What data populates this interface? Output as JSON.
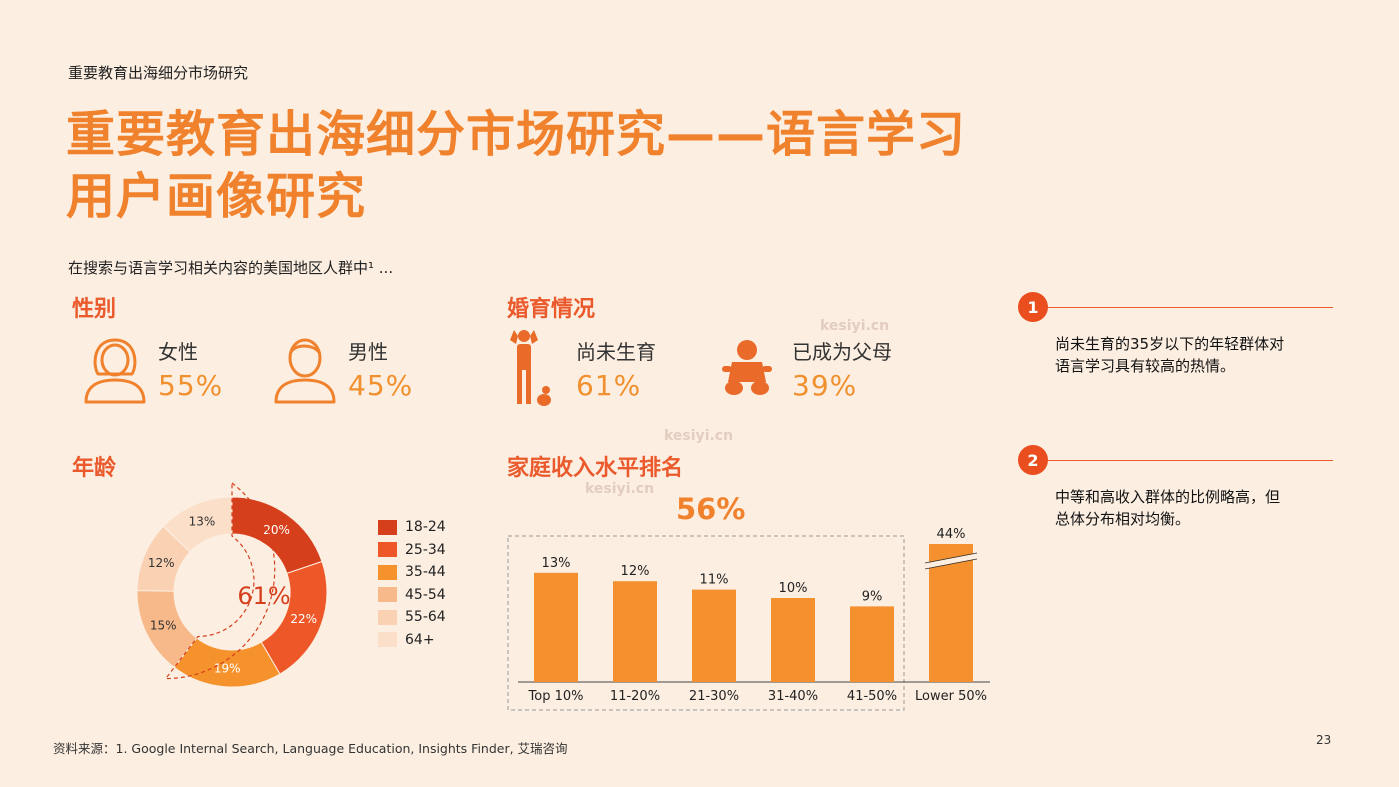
{
  "header": {
    "kicker": "重要教育出海细分市场研究",
    "title_line1": "重要教育出海细分市场研究——语言学习",
    "title_line2": "用户画像研究",
    "intro": "在搜索与语言学习相关内容的美国地区人群中¹ ..."
  },
  "gender": {
    "heading": "性别",
    "female_label": "女性",
    "female_pct": "55%",
    "male_label": "男性",
    "male_pct": "45%"
  },
  "parental": {
    "heading": "婚育情况",
    "nonparent_label": "尚未生育",
    "nonparent_pct": "61%",
    "parent_label": "已成为父母",
    "parent_pct": "39%"
  },
  "age_heading": "年龄",
  "income_heading": "家庭收入水平排名",
  "insights": [
    {
      "num": "1",
      "text_line1": "尚未生育的35岁以下的年轻群体对",
      "text_line2": "语言学习具有较高的热情。"
    },
    {
      "num": "2",
      "text_line1": "中等和高收入群体的比例略高，但",
      "text_line2": "总体分布相对均衡。"
    }
  ],
  "footer": {
    "source": "资料来源：1. Google Internal Search, Language Education, Insights Finder, 艾瑞咨询",
    "page": "23"
  },
  "watermark_text": "kesiyi.cn",
  "colors": {
    "accent": "#ea5a2c",
    "title": "#f0812d",
    "bar": "#f5902e",
    "background": "#fcefe2"
  },
  "icons": [
    "female-icon",
    "male-icon",
    "standing-person-icon",
    "baby-icon"
  ],
  "chart_data": [
    {
      "type": "pie",
      "subtype": "donut",
      "categories": [
        "18-24",
        "25-34",
        "35-44",
        "45-54",
        "55-64",
        "64+"
      ],
      "values": [
        20,
        22,
        19,
        15,
        12,
        13
      ],
      "value_labels": [
        "20%",
        "22%",
        "19%",
        "15%",
        "12%",
        "13%"
      ],
      "colors": [
        "#d63f1c",
        "#ee5727",
        "#f6922c",
        "#f8b98a",
        "#fad1b2",
        "#fbdfc9"
      ],
      "center_label": "61%",
      "highlight_note": "first three segments (18-24, 25-34, 35-44) outlined, sum 61%",
      "legend_placement": "right"
    },
    {
      "type": "bar",
      "categories": [
        "Top 10%",
        "11-20%",
        "21-30%",
        "31-40%",
        "41-50%",
        "Lower 50%"
      ],
      "values": [
        13,
        12,
        11,
        10,
        9,
        44
      ],
      "value_labels": [
        "13%",
        "12%",
        "11%",
        "10%",
        "9%",
        "44%"
      ],
      "axis_break_on": "Lower 50%",
      "group_highlight": {
        "categories": [
          "Top 10%",
          "11-20%",
          "21-30%",
          "31-40%",
          "41-50%"
        ],
        "label": "56%"
      },
      "color": "#f5902e",
      "grid": false
    }
  ]
}
